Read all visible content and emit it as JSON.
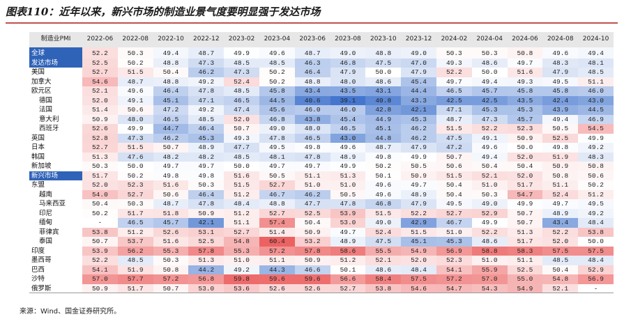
{
  "title": "图表110：近年以来，新兴市场的制造业景气度要明显强于发达市场",
  "table": {
    "header": [
      "制造业PMI",
      "2022-06",
      "2022-08",
      "2022-10",
      "2022-12",
      "2023-02",
      "2023-04",
      "2023-06",
      "2023-08",
      "2023-10",
      "2023-12",
      "2024-02",
      "2024-04",
      "2024-06",
      "2024-08",
      "2024-10"
    ],
    "rows": [
      {
        "label": "全球",
        "values": [
          52.2,
          50.3,
          49.4,
          48.7,
          49.9,
          49.6,
          48.7,
          49.0,
          48.8,
          49.0,
          50.3,
          50.3,
          50.8,
          49.6,
          49.4
        ]
      },
      {
        "label": "发达市场",
        "values": [
          52.5,
          50.2,
          48.8,
          47.3,
          48.5,
          48.5,
          46.3,
          46.8,
          47.5,
          47.0,
          49.3,
          48.6,
          49.7,
          48.3,
          48.1
        ]
      },
      {
        "label": "美国",
        "values": [
          52.7,
          51.5,
          50.4,
          46.2,
          47.3,
          50.2,
          46.4,
          47.9,
          50.0,
          47.9,
          52.2,
          50.0,
          51.6,
          47.9,
          48.5
        ]
      },
      {
        "label": "加拿大",
        "values": [
          54.6,
          48.7,
          48.8,
          49.2,
          52.4,
          50.2,
          48.8,
          48.0,
          48.6,
          45.4,
          49.7,
          49.4,
          49.3,
          49.5,
          51.1
        ]
      },
      {
        "label": "欧元区",
        "values": [
          52.1,
          49.6,
          46.4,
          47.8,
          48.5,
          45.8,
          43.4,
          43.5,
          43.1,
          44.4,
          46.5,
          45.7,
          45.8,
          45.8,
          46.0
        ]
      },
      {
        "label": "德国",
        "values": [
          52.0,
          49.1,
          45.1,
          47.1,
          46.5,
          44.5,
          40.6,
          39.1,
          40.8,
          43.3,
          42.5,
          42.5,
          43.5,
          42.4,
          43.0
        ]
      },
      {
        "label": "法国",
        "values": [
          51.4,
          50.6,
          47.2,
          49.2,
          47.4,
          45.6,
          46.0,
          46.0,
          42.8,
          42.1,
          47.1,
          45.3,
          45.3,
          43.9,
          44.5
        ]
      },
      {
        "label": "意大利",
        "values": [
          50.9,
          48.0,
          46.5,
          48.5,
          52.0,
          46.8,
          43.8,
          45.4,
          44.9,
          45.3,
          48.7,
          47.3,
          45.7,
          49.4,
          46.9
        ]
      },
      {
        "label": "西班牙",
        "values": [
          52.6,
          49.9,
          44.7,
          46.4,
          50.7,
          49.0,
          48.0,
          46.5,
          45.1,
          46.2,
          51.5,
          52.2,
          52.3,
          50.5,
          54.5
        ]
      },
      {
        "label": "英国",
        "values": [
          52.8,
          47.3,
          46.2,
          45.3,
          49.3,
          47.8,
          46.5,
          43.0,
          44.8,
          46.2,
          47.5,
          49.1,
          50.9,
          52.5,
          49.9
        ]
      },
      {
        "label": "日本",
        "values": [
          52.7,
          51.5,
          50.7,
          48.9,
          47.7,
          49.5,
          49.8,
          49.6,
          48.7,
          47.9,
          47.2,
          49.6,
          50.0,
          49.8,
          49.2
        ]
      },
      {
        "label": "韩国",
        "values": [
          51.3,
          47.6,
          48.2,
          48.2,
          48.5,
          48.1,
          47.8,
          48.9,
          49.8,
          49.9,
          50.7,
          49.4,
          52.0,
          51.9,
          48.3
        ]
      },
      {
        "label": "新加坡",
        "values": [
          50.3,
          50.0,
          49.7,
          49.7,
          50.0,
          49.7,
          49.7,
          49.9,
          50.2,
          50.5,
          50.6,
          50.4,
          50.4,
          50.9,
          50.8
        ]
      },
      {
        "label": "新兴市场",
        "values": [
          51.7,
          50.2,
          49.8,
          49.8,
          51.6,
          50.5,
          51.1,
          51.3,
          50.1,
          50.9,
          51.5,
          52.1,
          52.0,
          50.8,
          50.6
        ]
      },
      {
        "label": "东盟",
        "values": [
          52.0,
          52.3,
          51.6,
          50.3,
          51.5,
          52.7,
          51.0,
          51.0,
          49.6,
          49.7,
          50.4,
          51.0,
          51.7,
          51.1,
          50.2
        ]
      },
      {
        "label": "越南",
        "values": [
          54.0,
          52.7,
          50.6,
          46.4,
          51.2,
          46.7,
          46.2,
          50.5,
          49.6,
          48.9,
          50.4,
          50.3,
          54.7,
          52.4,
          51.2
        ]
      },
      {
        "label": "马来西亚",
        "values": [
          50.4,
          50.3,
          48.7,
          47.8,
          48.4,
          48.8,
          47.7,
          47.8,
          46.8,
          47.9,
          49.5,
          49.0,
          49.9,
          49.7,
          49.5
        ]
      },
      {
        "label": "印尼",
        "values": [
          50.2,
          51.7,
          51.8,
          50.9,
          51.2,
          52.7,
          52.5,
          53.9,
          51.5,
          52.2,
          52.7,
          52.9,
          50.7,
          48.9,
          49.2
        ]
      },
      {
        "label": "缅甸",
        "values": [
          "-",
          46.5,
          45.7,
          42.1,
          51.1,
          57.4,
          50.4,
          53.0,
          49.0,
          42.9,
          46.7,
          49.9,
          50.7,
          43.4,
          48.4
        ]
      },
      {
        "label": "菲律宾",
        "values": [
          53.8,
          51.2,
          52.6,
          53.1,
          52.7,
          51.4,
          50.9,
          49.7,
          52.4,
          51.5,
          51.0,
          52.2,
          51.3,
          52.2,
          53.8
        ]
      },
      {
        "label": "泰国",
        "values": [
          50.7,
          53.7,
          51.6,
          52.5,
          54.8,
          60.4,
          53.2,
          48.9,
          47.5,
          45.1,
          45.3,
          48.6,
          51.7,
          52.0,
          50.0
        ]
      },
      {
        "label": "印度",
        "values": [
          53.9,
          56.2,
          55.3,
          57.8,
          55.3,
          57.2,
          57.8,
          58.6,
          55.5,
          54.9,
          56.9,
          58.8,
          58.3,
          57.5,
          57.5
        ]
      },
      {
        "label": "墨西哥",
        "values": [
          52.2,
          48.5,
          50.3,
          51.3,
          51.0,
          51.1,
          50.9,
          51.2,
          52.1,
          52.0,
          52.3,
          51.0,
          51.1,
          48.5,
          48.4
        ]
      },
      {
        "label": "巴西",
        "values": [
          54.1,
          51.9,
          50.8,
          44.2,
          49.2,
          44.3,
          46.6,
          50.1,
          48.6,
          48.4,
          54.1,
          55.9,
          52.5,
          50.4,
          52.9
        ]
      },
      {
        "label": "沙特",
        "values": [
          57.0,
          57.7,
          57.2,
          56.8,
          59.8,
          59.6,
          59.6,
          56.6,
          58.4,
          57.5,
          57.2,
          57.0,
          55.0,
          54.8,
          56.9
        ]
      },
      {
        "label": "俄罗斯",
        "values": [
          50.9,
          51.7,
          50.7,
          53.0,
          53.6,
          52.6,
          52.6,
          52.7,
          53.8,
          54.6,
          54.7,
          54.3,
          54.9,
          52.1,
          "-"
        ]
      }
    ]
  },
  "source": "来源：Wind、国金证券研究所。"
}
